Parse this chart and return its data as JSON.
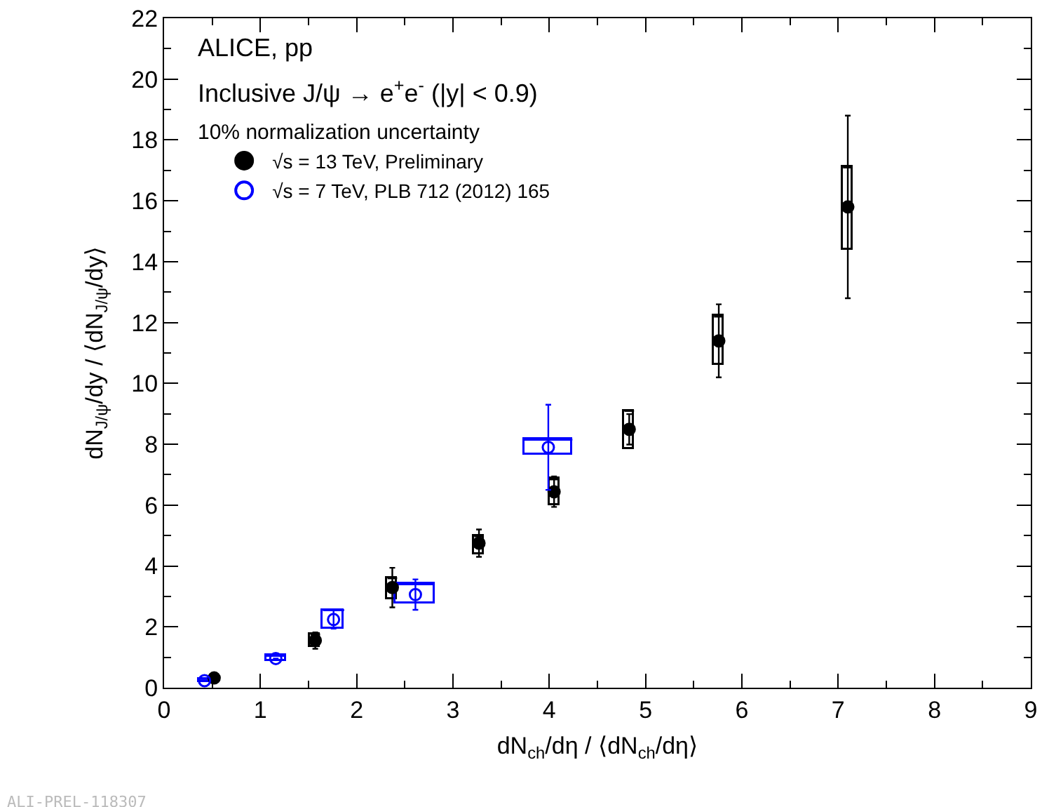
{
  "chart_data": {
    "type": "scatter",
    "xlabel": "dN$_{ch}$/dη / ⟨dN$_{ch}$/dη⟩",
    "ylabel": "dN$_{J/ψ}$/dy / ⟨dN$_{J/ψ}$/dy⟩",
    "annotations": [
      "ALICE, pp",
      "Inclusive J/ψ → e$^{+}$e$^{-}$ (|y| < 0.9)",
      "10% normalization uncertainty",
      "ALI-PREL-118307"
    ],
    "xlim": [
      0,
      9
    ],
    "xticks": [
      0,
      1,
      2,
      3,
      4,
      5,
      6,
      7,
      8,
      9
    ],
    "ylim": [
      0,
      22
    ],
    "yticks": [
      0,
      2,
      4,
      6,
      8,
      10,
      12,
      14,
      16,
      18,
      20,
      22
    ],
    "grid": false,
    "legend": "top left",
    "marker": "circle",
    "series": [
      {
        "type": "bar",
        "color": "#000000",
        "x": [
          1.57,
          2.37,
          3.27,
          4.05,
          4.83,
          5.76,
          7.1
        ],
        "base": [
          1.35,
          2.9,
          4.38,
          5.98,
          7.85,
          10.6,
          14.4
        ],
        "values": [
          0.4,
          0.7,
          0.6,
          0.87,
          1.25,
          1.6,
          2.7
        ],
        "xerrors": [
          0.05,
          0.05,
          0.05,
          0.05,
          0.05,
          0.05,
          0.05
        ]
      },
      {
        "type": "bar",
        "color": "#0000ff",
        "x": [
          0.42,
          1.16,
          1.76,
          2.61,
          3.99
        ],
        "base": [
          0.17,
          0.87,
          1.95,
          2.75,
          7.65
        ],
        "values": [
          0.12,
          0.18,
          0.6,
          0.65,
          0.5
        ],
        "xerrors": [
          0.06,
          0.1,
          0.11,
          0.2,
          0.25
        ]
      },
      {
        "name": "√s = 13 TeV, Preliminary",
        "color": "#000000",
        "x": [
          0.52,
          1.57,
          2.37,
          3.27,
          4.05,
          4.83,
          5.76,
          7.1
        ],
        "values": [
          0.32,
          1.55,
          3.29,
          4.75,
          6.44,
          8.49,
          11.4,
          15.8
        ],
        "errors": [
          null,
          0.27,
          0.65,
          0.45,
          0.5,
          0.5,
          1.2,
          3.0
        ]
      },
      {
        "name": "√s = 7 TeV, PLB 712 (2012) 165",
        "color": "#0000ff",
        "marker": "circle-open",
        "x": [
          0.42,
          1.16,
          1.76,
          2.61,
          3.99
        ],
        "values": [
          0.23,
          0.96,
          2.24,
          3.06,
          7.9
        ],
        "errors": [
          null,
          null,
          0.3,
          0.5,
          1.4
        ]
      }
    ]
  }
}
